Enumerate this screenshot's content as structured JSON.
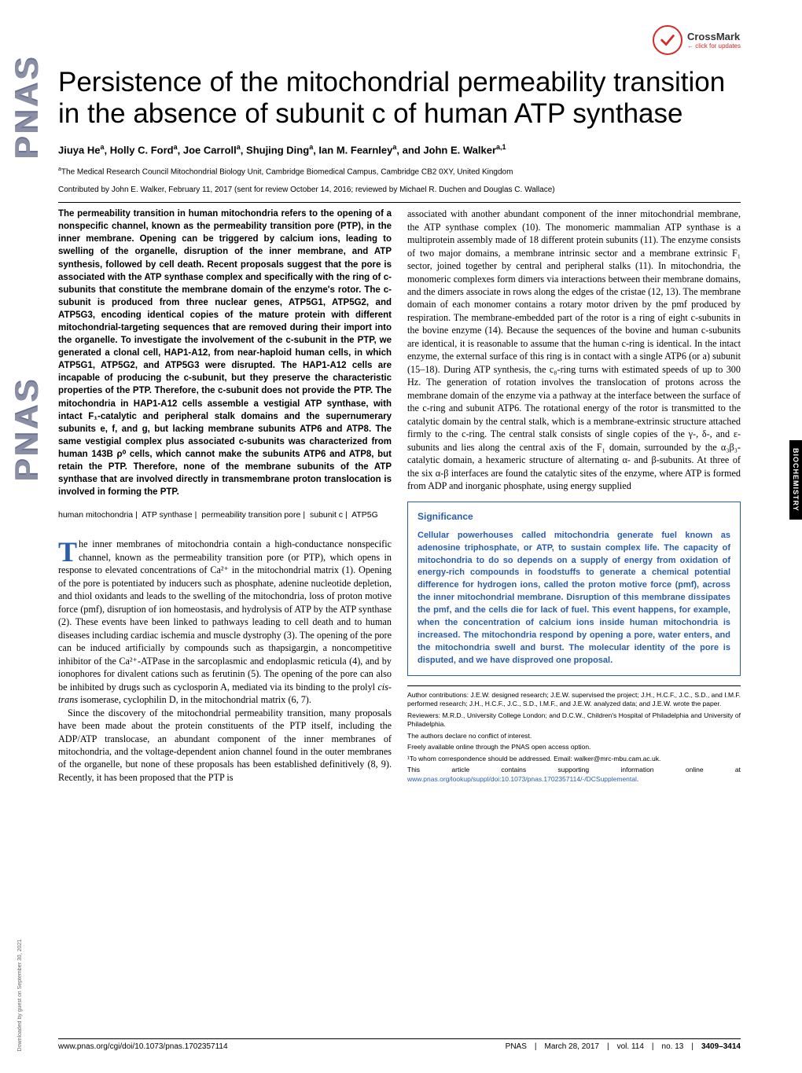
{
  "crossmark": {
    "label": "CrossMark",
    "sub": "← click for updates"
  },
  "pnas_label": "PNAS",
  "title": "Persistence of the mitochondrial permeability transition in the absence of subunit c of human ATP synthase",
  "authors_html": "Jiuya He<sup>a</sup>, Holly C. Ford<sup>a</sup>, Joe Carroll<sup>a</sup>, Shujing Ding<sup>a</sup>, Ian M. Fearnley<sup>a</sup>, and John E. Walker<sup>a,1</sup>",
  "affiliation": "<sup>a</sup>The Medical Research Council Mitochondrial Biology Unit, Cambridge Biomedical Campus, Cambridge CB2 0XY, United Kingdom",
  "contributed": "Contributed by John E. Walker, February 11, 2017 (sent for review October 14, 2016; reviewed by Michael R. Duchen and Douglas C. Wallace)",
  "abstract": "The permeability transition in human mitochondria refers to the opening of a nonspecific channel, known as the permeability transition pore (PTP), in the inner membrane. Opening can be triggered by calcium ions, leading to swelling of the organelle, disruption of the inner membrane, and ATP synthesis, followed by cell death. Recent proposals suggest that the pore is associated with the ATP synthase complex and specifically with the ring of c-subunits that constitute the membrane domain of the enzyme's rotor. The c-subunit is produced from three nuclear genes, ATP5G1, ATP5G2, and ATP5G3, encoding identical copies of the mature protein with different mitochondrial-targeting sequences that are removed during their import into the organelle. To investigate the involvement of the c-subunit in the PTP, we generated a clonal cell, HAP1-A12, from near-haploid human cells, in which ATP5G1, ATP5G2, and ATP5G3 were disrupted. The HAP1-A12 cells are incapable of producing the c-subunit, but they preserve the characteristic properties of the PTP. Therefore, the c-subunit does not provide the PTP. The mitochondria in HAP1-A12 cells assemble a vestigial ATP synthase, with intact F₁-catalytic and peripheral stalk domains and the supernumerary subunits e, f, and g, but lacking membrane subunits ATP6 and ATP8. The same vestigial complex plus associated c-subunits was characterized from human 143B ρ⁰ cells, which cannot make the subunits ATP6 and ATP8, but retain the PTP. Therefore, none of the membrane subunits of the ATP synthase that are involved directly in transmembrane proton translocation is involved in forming the PTP.",
  "keywords": [
    "human mitochondria",
    "ATP synthase",
    "permeability transition pore",
    "subunit c",
    "ATP5G"
  ],
  "body_para1": "he inner membranes of mitochondria contain a high-conductance nonspecific channel, known as the permeability transition pore (or PTP), which opens in response to elevated concentrations of Ca²⁺ in the mitochondrial matrix (1). Opening of the pore is potentiated by inducers such as phosphate, adenine nucleotide depletion, and thiol oxidants and leads to the swelling of the mitochondria, loss of proton motive force (pmf), disruption of ion homeostasis, and hydrolysis of ATP by the ATP synthase (2). These events have been linked to pathways leading to cell death and to human diseases including cardiac ischemia and muscle dystrophy (3). The opening of the pore can be induced artificially by compounds such as thapsigargin, a noncompetitive inhibitor of the Ca²⁺-ATPase in the sarcoplasmic and endoplasmic reticula (4), and by ionophores for divalent cations such as ferutinin (5). The opening of the pore can also be inhibited by drugs such as cyclosporin A, mediated via its binding to the prolyl <i>cis-trans</i> isomerase, cyclophilin D, in the mitochondrial matrix (6, 7).",
  "body_para2": "Since the discovery of the mitochondrial permeability transition, many proposals have been made about the protein constituents of the PTP itself, including the ADP/ATP translocase, an abundant component of the inner membranes of mitochondria, and the voltage-dependent anion channel found in the outer membranes of the organelle, but none of these proposals has been established definitively (8, 9). Recently, it has been proposed that the PTP is",
  "col2_para": "associated with another abundant component of the inner mitochondrial membrane, the ATP synthase complex (10). The monomeric mammalian ATP synthase is a multiprotein assembly made of 18 different protein subunits (11). The enzyme consists of two major domains, a membrane intrinsic sector and a membrane extrinsic F₁ sector, joined together by central and peripheral stalks (11). In mitochondria, the monomeric complexes form dimers via interactions between their membrane domains, and the dimers associate in rows along the edges of the cristae (12, 13). The membrane domain of each monomer contains a rotary motor driven by the pmf produced by respiration. The membrane-embedded part of the rotor is a ring of eight c-subunits in the bovine enzyme (14). Because the sequences of the bovine and human c-subunits are identical, it is reasonable to assume that the human c-ring is identical. In the intact enzyme, the external surface of this ring is in contact with a single ATP6 (or a) subunit (15–18). During ATP synthesis, the c₈-ring turns with estimated speeds of up to 300 Hz. The generation of rotation involves the translocation of protons across the membrane domain of the enzyme via a pathway at the interface between the surface of the c-ring and subunit ATP6. The rotational energy of the rotor is transmitted to the catalytic domain by the central stalk, which is a membrane-extrinsic structure attached firmly to the c-ring. The central stalk consists of single copies of the γ-, δ-, and ε-subunits and lies along the central axis of the F₁ domain, surrounded by the α₃β₃-catalytic domain, a hexameric structure of alternating α- and β-subunits. At three of the six α-β interfaces are found the catalytic sites of the enzyme, where ATP is formed from ADP and inorganic phosphate, using energy supplied",
  "significance": {
    "head": "Significance",
    "body": "Cellular powerhouses called mitochondria generate fuel known as adenosine triphosphate, or ATP, to sustain complex life. The capacity of mitochondria to do so depends on a supply of energy from oxidation of energy-rich compounds in foodstuffs to generate a chemical potential difference for hydrogen ions, called the proton motive force (pmf), across the inner mitochondrial membrane. Disruption of this membrane dissipates the pmf, and the cells die for lack of fuel. This event happens, for example, when the concentration of calcium ions inside human mitochondria is increased. The mitochondria respond by opening a pore, water enters, and the mitochondria swell and burst. The molecular identity of the pore is disputed, and we have disproved one proposal."
  },
  "footnotes": {
    "author_contrib": "Author contributions: J.E.W. designed research; J.E.W. supervised the project; J.H., H.C.F., J.C., S.D., and I.M.F. performed research; J.H., H.C.F., J.C., S.D., I.M.F., and J.E.W. analyzed data; and J.E.W. wrote the paper.",
    "reviewers": "Reviewers: M.R.D., University College London; and D.C.W., Children's Hospital of Philadelphia and University of Philadelphia.",
    "conflict": "The authors declare no conflict of interest.",
    "open": "Freely available online through the PNAS open access option.",
    "corr": "¹To whom correspondence should be addressed. Email: walker@mrc-mbu.cam.ac.uk.",
    "suppl": "This article contains supporting information online at ",
    "suppl_link": "www.pnas.org/lookup/suppl/doi:10.1073/pnas.1702357114/-/DCSupplemental",
    "suppl_end": "."
  },
  "footer": {
    "left": "www.pnas.org/cgi/doi/10.1073/pnas.1702357114",
    "journal": "PNAS",
    "date": "March 28, 2017",
    "vol": "vol. 114",
    "no": "no. 13",
    "pages": "3409–3414"
  },
  "side_tab": "BIOCHEMISTRY",
  "download": "Downloaded by guest on September 30, 2021",
  "colors": {
    "accent": "#2a5caa",
    "crossmark": "#d62828",
    "pnas_gray": "#8a8fa3"
  }
}
